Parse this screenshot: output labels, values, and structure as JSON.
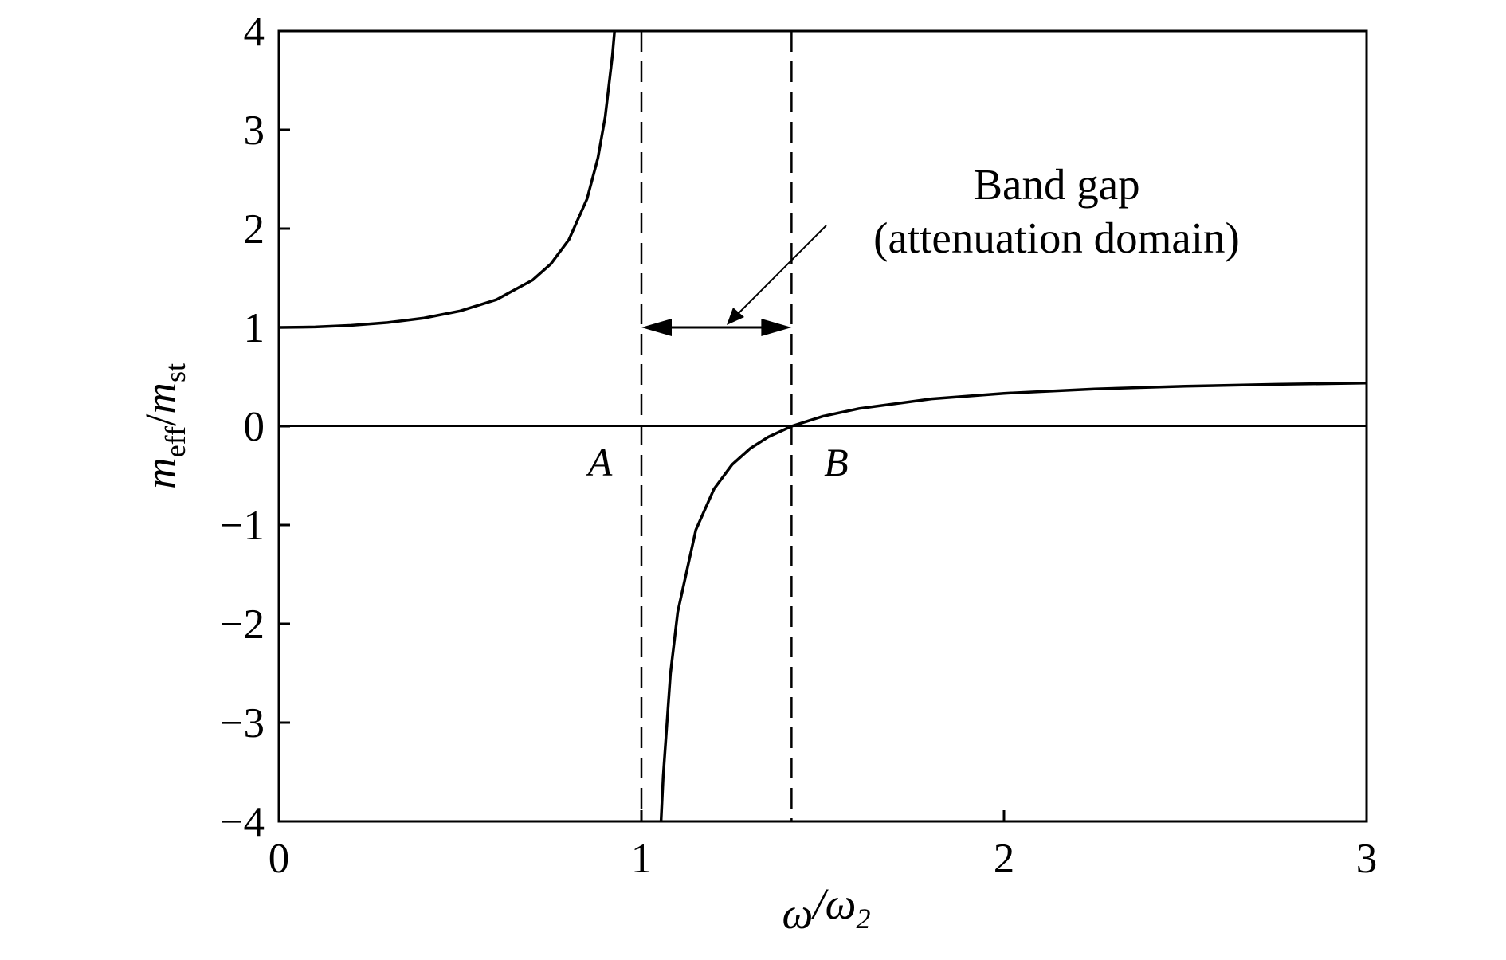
{
  "chart_data": {
    "type": "line",
    "xlabel": [
      "ω",
      "/",
      "ω",
      "2"
    ],
    "ylabel": [
      "m",
      "eff",
      "/",
      "m",
      "st"
    ],
    "xlim": [
      0,
      3
    ],
    "xticks": [
      0,
      1,
      2,
      3
    ],
    "ylim": [
      -4,
      4
    ],
    "yticks": [
      -4,
      -3,
      -2,
      -1,
      0,
      1,
      2,
      3,
      4
    ],
    "series": [
      {
        "color": "#000000",
        "x": [
          0,
          0.1,
          0.2,
          0.3,
          0.4,
          0.5,
          0.6,
          0.7,
          0.75,
          0.8,
          0.85,
          0.88,
          0.9,
          0.92,
          0.926,
          1,
          1.054,
          1.06,
          1.08,
          1.1,
          1.15,
          1.2,
          1.25,
          1.3,
          1.35,
          1.414,
          1.5,
          1.6,
          1.8,
          2,
          2.25,
          2.5,
          2.75,
          3
        ],
        "values": [
          1,
          1.005,
          1.021,
          1.049,
          1.095,
          1.167,
          1.281,
          1.48,
          1.643,
          1.889,
          2.302,
          2.716,
          3.132,
          3.755,
          4.008,
          null,
          -4.008,
          -3.545,
          -2.505,
          -1.881,
          -1.05,
          -0.636,
          -0.389,
          -0.225,
          -0.108,
          0,
          0.1,
          0.179,
          0.277,
          0.333,
          0.377,
          0.405,
          0.424,
          0.4375
        ]
      }
    ],
    "hline": 0,
    "vlines": [
      1,
      1.414
    ],
    "arrow_y": 1,
    "point_labels": [
      "A",
      "B"
    ],
    "annotation": [
      "Band gap",
      "(attenuation domain)"
    ]
  }
}
